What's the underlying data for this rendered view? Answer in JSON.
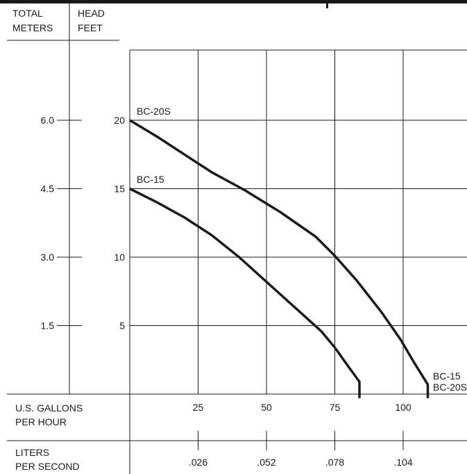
{
  "chart_data": {
    "type": "line",
    "headers": {
      "left_col": [
        "TOTAL",
        "METERS"
      ],
      "right_col": [
        "HEAD",
        "FEET"
      ]
    },
    "y_axis_meters": {
      "ticks": [
        {
          "value": 6.0,
          "label": "6.0"
        },
        {
          "value": 4.5,
          "label": "4.5"
        },
        {
          "value": 3.0,
          "label": "3.0"
        },
        {
          "value": 1.5,
          "label": "1.5"
        }
      ]
    },
    "y_axis_feet": {
      "ticks": [
        {
          "value": 20,
          "label": "20"
        },
        {
          "value": 15,
          "label": "15"
        },
        {
          "value": 10,
          "label": "10"
        },
        {
          "value": 5,
          "label": "5"
        }
      ],
      "ylim": [
        0,
        24
      ]
    },
    "x_axis_gph": {
      "label": [
        "U.S. GALLONS",
        "PER HOUR"
      ],
      "ticks": [
        {
          "value": 25,
          "label": "25"
        },
        {
          "value": 50,
          "label": "50"
        },
        {
          "value": 75,
          "label": "75"
        },
        {
          "value": 100,
          "label": "100"
        }
      ],
      "xlim": [
        0,
        123
      ]
    },
    "x_axis_lps": {
      "label": [
        "LITERS",
        "PER SECOND"
      ],
      "ticks": [
        {
          "gph": 25,
          "label": ".026"
        },
        {
          "gph": 50,
          "label": ".052"
        },
        {
          "gph": 75,
          "label": ".078"
        },
        {
          "gph": 100,
          "label": ".104"
        }
      ]
    },
    "grid": true,
    "series": [
      {
        "name": "BC-20S",
        "x": [
          0,
          10,
          20,
          30,
          42,
          55,
          68,
          75,
          83,
          92,
          99,
          104,
          109,
          109
        ],
        "y": [
          20,
          18.8,
          17.5,
          16.2,
          14.9,
          13.3,
          11.5,
          10.1,
          8.3,
          6.0,
          4.0,
          2.3,
          0.7,
          -0.3
        ]
      },
      {
        "name": "BC-15",
        "x": [
          0,
          10,
          20,
          30,
          40,
          50,
          60,
          70,
          75,
          80,
          84,
          84
        ],
        "y": [
          15,
          14.0,
          12.9,
          11.6,
          10.0,
          8.2,
          6.4,
          4.6,
          3.4,
          2.0,
          0.9,
          -0.3
        ]
      }
    ],
    "annotations": {
      "curve_labels": [
        "BC-20S",
        "BC-15"
      ],
      "cutoff_labels": [
        "BC-15",
        "BC-20S"
      ]
    }
  }
}
